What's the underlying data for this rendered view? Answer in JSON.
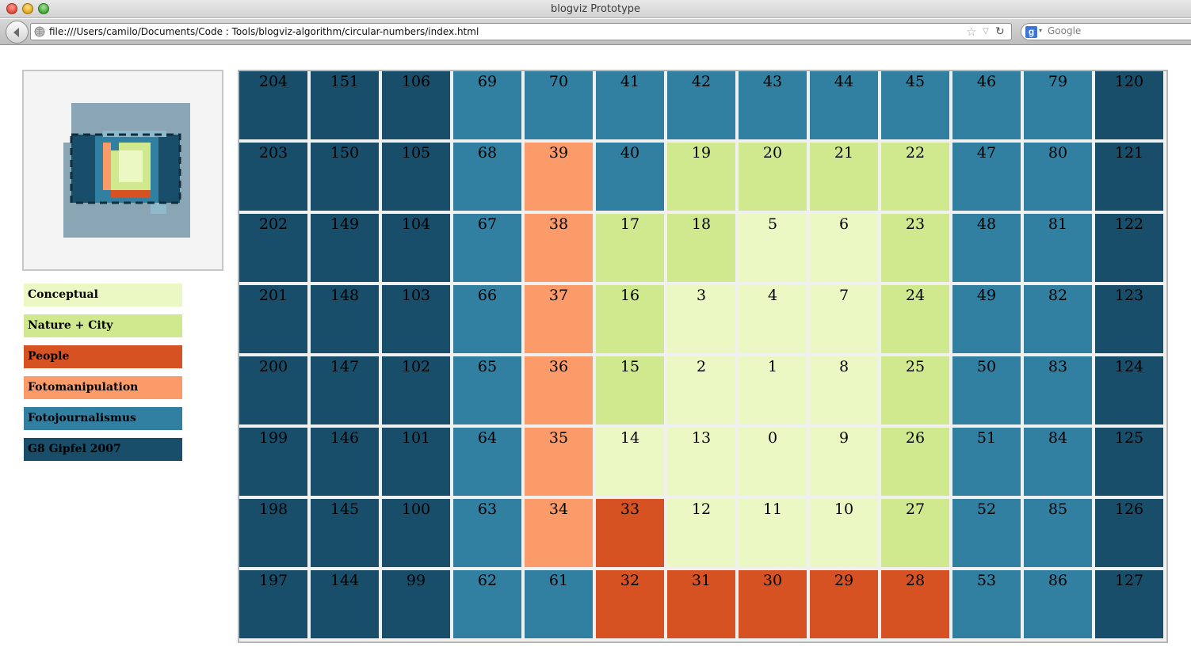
{
  "window": {
    "title": "blogviz Prototype"
  },
  "toolbar": {
    "url": "file:///Users/camilo/Documents/Code : Tools/blogviz-algorithm/circular-numbers/index.html",
    "search_placeholder": "Google",
    "icons": [
      "back-arrow-icon",
      "globe-icon",
      "bookmark-star-icon",
      "dropdown-arrow-icon",
      "reload-icon",
      "google-icon"
    ]
  },
  "colors": {
    "conceptual": "#ebf8c4",
    "nature_city": "#d0e88e",
    "people": "#d65222",
    "fotomanipulation": "#fb9b6a",
    "fotojournalismus": "#317fa1",
    "g8": "#184e6a"
  },
  "legend": [
    {
      "label": "Conceptual",
      "category": "conceptual"
    },
    {
      "label": "Nature + City",
      "category": "nature_city"
    },
    {
      "label": "People",
      "category": "people"
    },
    {
      "label": "Fotomanipulation",
      "category": "fotomanipulation"
    },
    {
      "label": "Fotojournalismus",
      "category": "fotojournalismus"
    },
    {
      "label": "G8 Gipfel 2007",
      "category": "g8"
    }
  ],
  "grid": {
    "columns": 13,
    "rows": [
      [
        {
          "n": "204",
          "c": "g8"
        },
        {
          "n": "151",
          "c": "g8"
        },
        {
          "n": "106",
          "c": "g8"
        },
        {
          "n": "69",
          "c": "fotojournalismus"
        },
        {
          "n": "70",
          "c": "fotojournalismus"
        },
        {
          "n": "41",
          "c": "fotojournalismus"
        },
        {
          "n": "42",
          "c": "fotojournalismus"
        },
        {
          "n": "43",
          "c": "fotojournalismus"
        },
        {
          "n": "44",
          "c": "fotojournalismus"
        },
        {
          "n": "45",
          "c": "fotojournalismus"
        },
        {
          "n": "46",
          "c": "fotojournalismus"
        },
        {
          "n": "79",
          "c": "fotojournalismus"
        },
        {
          "n": "120",
          "c": "g8"
        }
      ],
      [
        {
          "n": "203",
          "c": "g8"
        },
        {
          "n": "150",
          "c": "g8"
        },
        {
          "n": "105",
          "c": "g8"
        },
        {
          "n": "68",
          "c": "fotojournalismus"
        },
        {
          "n": "39",
          "c": "fotomanipulation"
        },
        {
          "n": "40",
          "c": "fotojournalismus"
        },
        {
          "n": "19",
          "c": "nature_city"
        },
        {
          "n": "20",
          "c": "nature_city"
        },
        {
          "n": "21",
          "c": "nature_city"
        },
        {
          "n": "22",
          "c": "nature_city"
        },
        {
          "n": "47",
          "c": "fotojournalismus"
        },
        {
          "n": "80",
          "c": "fotojournalismus"
        },
        {
          "n": "121",
          "c": "g8"
        }
      ],
      [
        {
          "n": "202",
          "c": "g8"
        },
        {
          "n": "149",
          "c": "g8"
        },
        {
          "n": "104",
          "c": "g8"
        },
        {
          "n": "67",
          "c": "fotojournalismus"
        },
        {
          "n": "38",
          "c": "fotomanipulation"
        },
        {
          "n": "17",
          "c": "nature_city"
        },
        {
          "n": "18",
          "c": "nature_city"
        },
        {
          "n": "5",
          "c": "conceptual"
        },
        {
          "n": "6",
          "c": "conceptual"
        },
        {
          "n": "23",
          "c": "nature_city"
        },
        {
          "n": "48",
          "c": "fotojournalismus"
        },
        {
          "n": "81",
          "c": "fotojournalismus"
        },
        {
          "n": "122",
          "c": "g8"
        }
      ],
      [
        {
          "n": "201",
          "c": "g8"
        },
        {
          "n": "148",
          "c": "g8"
        },
        {
          "n": "103",
          "c": "g8"
        },
        {
          "n": "66",
          "c": "fotojournalismus"
        },
        {
          "n": "37",
          "c": "fotomanipulation"
        },
        {
          "n": "16",
          "c": "nature_city"
        },
        {
          "n": "3",
          "c": "conceptual"
        },
        {
          "n": "4",
          "c": "conceptual"
        },
        {
          "n": "7",
          "c": "conceptual"
        },
        {
          "n": "24",
          "c": "nature_city"
        },
        {
          "n": "49",
          "c": "fotojournalismus"
        },
        {
          "n": "82",
          "c": "fotojournalismus"
        },
        {
          "n": "123",
          "c": "g8"
        }
      ],
      [
        {
          "n": "200",
          "c": "g8"
        },
        {
          "n": "147",
          "c": "g8"
        },
        {
          "n": "102",
          "c": "g8"
        },
        {
          "n": "65",
          "c": "fotojournalismus"
        },
        {
          "n": "36",
          "c": "fotomanipulation"
        },
        {
          "n": "15",
          "c": "nature_city"
        },
        {
          "n": "2",
          "c": "conceptual"
        },
        {
          "n": "1",
          "c": "conceptual"
        },
        {
          "n": "8",
          "c": "conceptual"
        },
        {
          "n": "25",
          "c": "nature_city"
        },
        {
          "n": "50",
          "c": "fotojournalismus"
        },
        {
          "n": "83",
          "c": "fotojournalismus"
        },
        {
          "n": "124",
          "c": "g8"
        }
      ],
      [
        {
          "n": "199",
          "c": "g8"
        },
        {
          "n": "146",
          "c": "g8"
        },
        {
          "n": "101",
          "c": "g8"
        },
        {
          "n": "64",
          "c": "fotojournalismus"
        },
        {
          "n": "35",
          "c": "fotomanipulation"
        },
        {
          "n": "14",
          "c": "conceptual"
        },
        {
          "n": "13",
          "c": "conceptual"
        },
        {
          "n": "0",
          "c": "conceptual"
        },
        {
          "n": "9",
          "c": "conceptual"
        },
        {
          "n": "26",
          "c": "nature_city"
        },
        {
          "n": "51",
          "c": "fotojournalismus"
        },
        {
          "n": "84",
          "c": "fotojournalismus"
        },
        {
          "n": "125",
          "c": "g8"
        }
      ],
      [
        {
          "n": "198",
          "c": "g8"
        },
        {
          "n": "145",
          "c": "g8"
        },
        {
          "n": "100",
          "c": "g8"
        },
        {
          "n": "63",
          "c": "fotojournalismus"
        },
        {
          "n": "34",
          "c": "fotomanipulation"
        },
        {
          "n": "33",
          "c": "people"
        },
        {
          "n": "12",
          "c": "conceptual"
        },
        {
          "n": "11",
          "c": "conceptual"
        },
        {
          "n": "10",
          "c": "conceptual"
        },
        {
          "n": "27",
          "c": "nature_city"
        },
        {
          "n": "52",
          "c": "fotojournalismus"
        },
        {
          "n": "85",
          "c": "fotojournalismus"
        },
        {
          "n": "126",
          "c": "g8"
        }
      ],
      [
        {
          "n": "197",
          "c": "g8"
        },
        {
          "n": "144",
          "c": "g8"
        },
        {
          "n": "99",
          "c": "g8"
        },
        {
          "n": "62",
          "c": "fotojournalismus"
        },
        {
          "n": "61",
          "c": "fotojournalismus"
        },
        {
          "n": "32",
          "c": "people"
        },
        {
          "n": "31",
          "c": "people"
        },
        {
          "n": "30",
          "c": "people"
        },
        {
          "n": "29",
          "c": "people"
        },
        {
          "n": "28",
          "c": "people"
        },
        {
          "n": "53",
          "c": "fotojournalismus"
        },
        {
          "n": "86",
          "c": "fotojournalismus"
        },
        {
          "n": "127",
          "c": "g8"
        }
      ]
    ]
  }
}
